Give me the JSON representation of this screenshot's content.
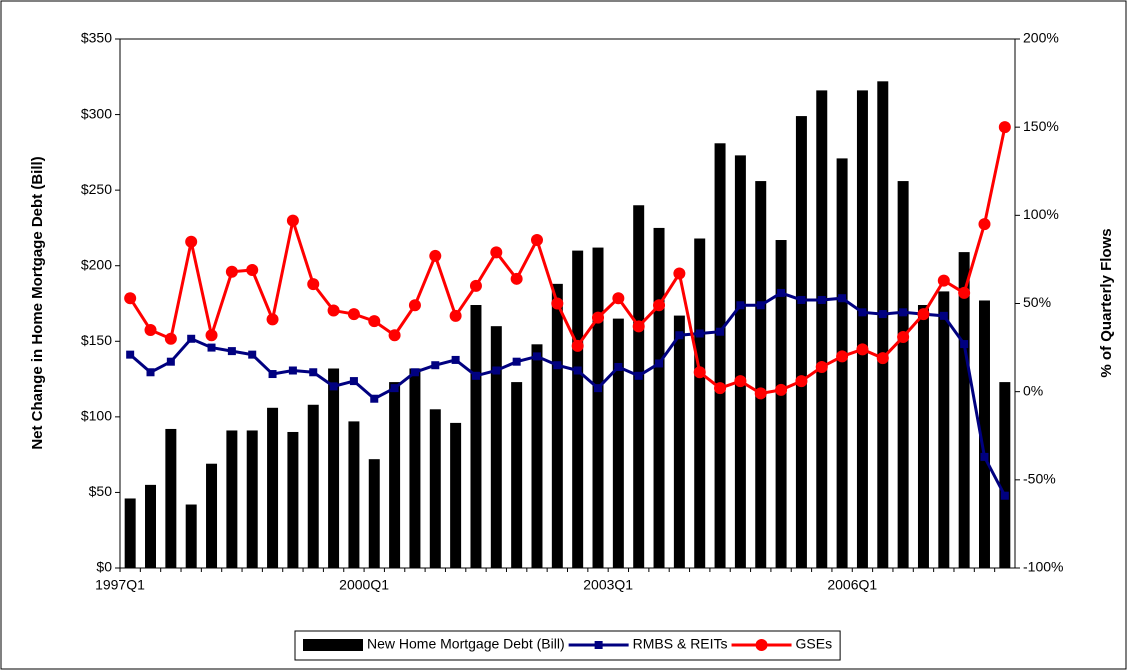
{
  "chart_data": {
    "type": "combo",
    "y_axis_label": "Net Change in Home Mortgage Debt (Bill)",
    "y2_axis_label": "% of Quarterly Flows",
    "categories": [
      "1997Q1",
      null,
      null,
      null,
      null,
      null,
      null,
      null,
      null,
      null,
      null,
      null,
      "2000Q1",
      null,
      null,
      null,
      null,
      null,
      null,
      null,
      null,
      null,
      null,
      null,
      "2003Q1",
      null,
      null,
      null,
      null,
      null,
      null,
      null,
      null,
      null,
      null,
      null,
      "2006Q1",
      null,
      null,
      null,
      null,
      null,
      null,
      null
    ],
    "ylim": [
      0,
      350
    ],
    "yticks": [
      {
        "value": 0,
        "label": "$0"
      },
      {
        "value": 50,
        "label": "$50"
      },
      {
        "value": 100,
        "label": "$100"
      },
      {
        "value": 150,
        "label": "$150"
      },
      {
        "value": 200,
        "label": "$200"
      },
      {
        "value": 250,
        "label": "$250"
      },
      {
        "value": 300,
        "label": "$300"
      },
      {
        "value": 350,
        "label": "$350"
      }
    ],
    "y2lim": [
      -100,
      200
    ],
    "y2ticks": [
      {
        "value": -100,
        "label": "-100%"
      },
      {
        "value": -50,
        "label": "-50%"
      },
      {
        "value": 0,
        "label": "0%"
      },
      {
        "value": 50,
        "label": "50%"
      },
      {
        "value": 100,
        "label": "100%"
      },
      {
        "value": 150,
        "label": "150%"
      },
      {
        "value": 200,
        "label": "200%"
      }
    ],
    "grid": false,
    "legend": "bottom",
    "series": [
      {
        "name": "New Home Mortgage Debt (Bill)",
        "type": "bar",
        "color": "#000000",
        "values": [
          46,
          55,
          92,
          42,
          69,
          91,
          91,
          106,
          90,
          108,
          132,
          97,
          72,
          123,
          132,
          105,
          96,
          174,
          160,
          123,
          148,
          188,
          210,
          212,
          165,
          240,
          225,
          167,
          218,
          281,
          273,
          256,
          217,
          299,
          316,
          271,
          316,
          322,
          256,
          174,
          183,
          209,
          177,
          123
        ]
      },
      {
        "name": "RMBS & REITs",
        "type": "line",
        "axis": "y2",
        "color": "#000080",
        "marker": "square",
        "values": [
          21,
          11,
          17,
          30,
          25,
          23,
          21,
          10,
          12,
          11,
          3,
          6,
          -4,
          2,
          11,
          15,
          18,
          9,
          12,
          17,
          20,
          15,
          12,
          2,
          14,
          9,
          16,
          32,
          33,
          34,
          49,
          49,
          56,
          52,
          52,
          53,
          45,
          44,
          45,
          44,
          43,
          27,
          -37,
          -59
        ]
      },
      {
        "name": "GSEs",
        "type": "line",
        "axis": "y2",
        "color": "#ff0000",
        "marker": "circle",
        "values": [
          53,
          35,
          30,
          85,
          32,
          68,
          69,
          41,
          97,
          61,
          46,
          44,
          40,
          32,
          49,
          77,
          43,
          60,
          79,
          64,
          86,
          50,
          26,
          42,
          53,
          37,
          49,
          67,
          11,
          2,
          6,
          -1,
          1,
          6,
          14,
          20,
          24,
          19,
          31,
          44,
          63,
          56,
          95,
          150
        ]
      }
    ]
  }
}
